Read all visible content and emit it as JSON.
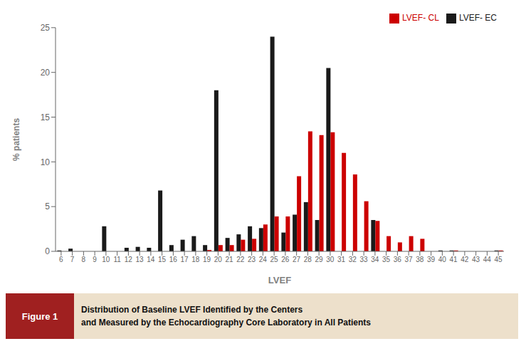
{
  "chart_data": {
    "type": "bar",
    "categories": [
      6,
      7,
      8,
      9,
      10,
      11,
      12,
      13,
      14,
      15,
      16,
      17,
      18,
      19,
      20,
      21,
      22,
      23,
      24,
      25,
      26,
      27,
      28,
      29,
      30,
      31,
      32,
      33,
      34,
      35,
      36,
      37,
      38,
      39,
      40,
      41,
      42,
      43,
      44,
      45
    ],
    "series": [
      {
        "name": "LVEF- EC",
        "color": "#1a1a1a",
        "values": [
          0.1,
          0.3,
          0.0,
          0.0,
          2.8,
          0.0,
          0.4,
          0.5,
          0.4,
          6.8,
          0.7,
          1.3,
          1.7,
          0.7,
          18.0,
          1.5,
          1.9,
          2.8,
          2.6,
          24.0,
          2.1,
          4.1,
          5.5,
          3.5,
          20.5,
          0.0,
          0.0,
          0.0,
          3.5,
          0.0,
          0.0,
          0.0,
          0.0,
          0.0,
          0.1,
          0.1,
          0.0,
          0.0,
          0.0,
          0.1
        ]
      },
      {
        "name": "LVEF- CL",
        "color": "#cc0000",
        "values": [
          0.0,
          0.0,
          0.0,
          0.0,
          0.0,
          0.0,
          0.0,
          0.0,
          0.0,
          0.0,
          0.0,
          0.0,
          0.0,
          0.15,
          0.7,
          0.7,
          1.3,
          1.4,
          3.0,
          3.9,
          3.9,
          8.4,
          13.4,
          13.0,
          13.3,
          11.0,
          8.6,
          5.6,
          3.4,
          1.7,
          1.0,
          1.7,
          1.4,
          0.0,
          0.0,
          0.1,
          0.0,
          0.0,
          0.0,
          0.1
        ]
      }
    ],
    "xlabel": "LVEF",
    "ylabel": "% patients",
    "ylim": [
      0,
      25
    ],
    "yticks": [
      0,
      5,
      10,
      15,
      20,
      25
    ],
    "grid": false,
    "legend": "upper right",
    "annotations": [
      "Figure 1",
      "Distribution of Baseline LVEF Identified by the Centers",
      "and Measured by the Echocardiography Core Laboratory in All Patients"
    ]
  }
}
